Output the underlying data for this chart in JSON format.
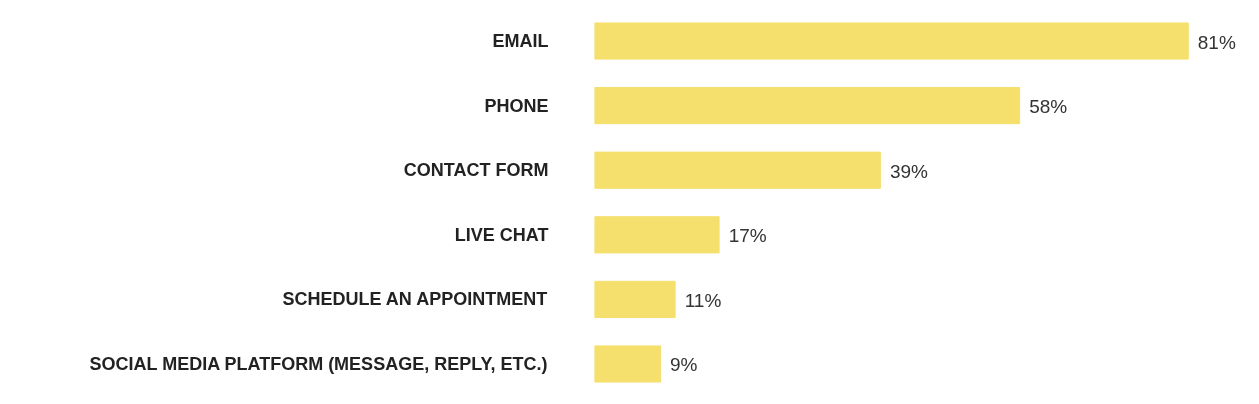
{
  "chart_data": {
    "type": "bar",
    "orientation": "horizontal",
    "categories": [
      "EMAIL",
      "PHONE",
      "CONTACT FORM",
      "LIVE CHAT",
      "SCHEDULE AN APPOINTMENT",
      "SOCIAL MEDIA PLATFORM (MESSAGE, REPLY, ETC.)"
    ],
    "values": [
      81,
      58,
      39,
      17,
      11,
      9
    ],
    "value_labels": [
      "81%",
      "58%",
      "39%",
      "17%",
      "11%",
      "9%"
    ],
    "color": "#f5e06e",
    "tick_labels": "y"
  }
}
